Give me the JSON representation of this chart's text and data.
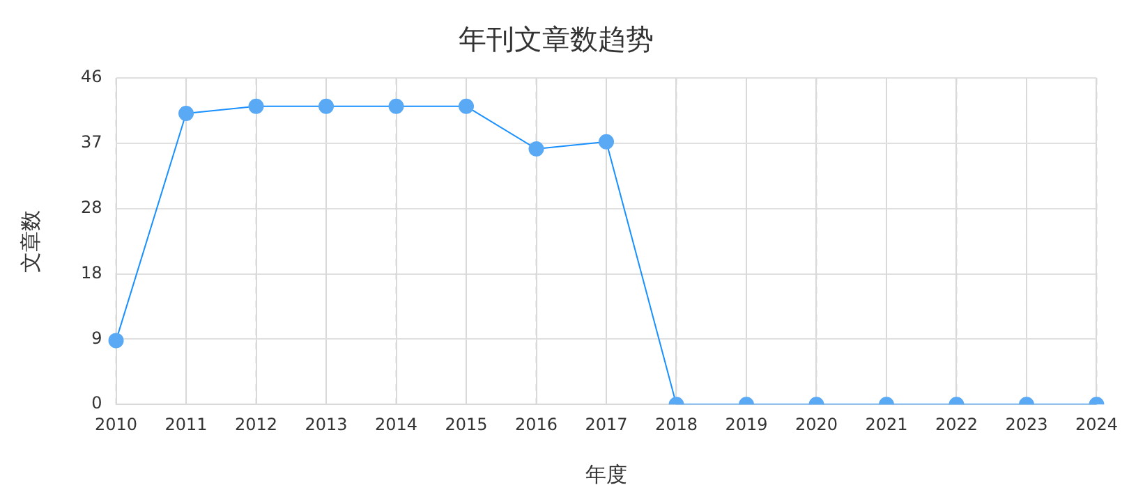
{
  "chart_data": {
    "type": "line",
    "title": "年刊文章数趋势",
    "xlabel": "年度",
    "ylabel": "文章数",
    "categories": [
      "2010",
      "2011",
      "2012",
      "2013",
      "2014",
      "2015",
      "2016",
      "2017",
      "2018",
      "2019",
      "2020",
      "2021",
      "2022",
      "2023",
      "2024"
    ],
    "series": [
      {
        "color": "#1890ff",
        "values": [
          9,
          41,
          42,
          42,
          42,
          42,
          36,
          37,
          0,
          0,
          0,
          0,
          0,
          0,
          0
        ]
      }
    ],
    "ylim": [
      0,
      46
    ],
    "yticks": [
      0,
      {
        "value": 9.2,
        "label": "9"
      },
      {
        "value": 18.4,
        "label": "18"
      },
      {
        "value": 27.6,
        "label": "28"
      },
      {
        "value": 36.8,
        "label": "37"
      },
      46
    ],
    "grid": true,
    "marker": "circle",
    "line_style": "solid",
    "legend": false
  }
}
